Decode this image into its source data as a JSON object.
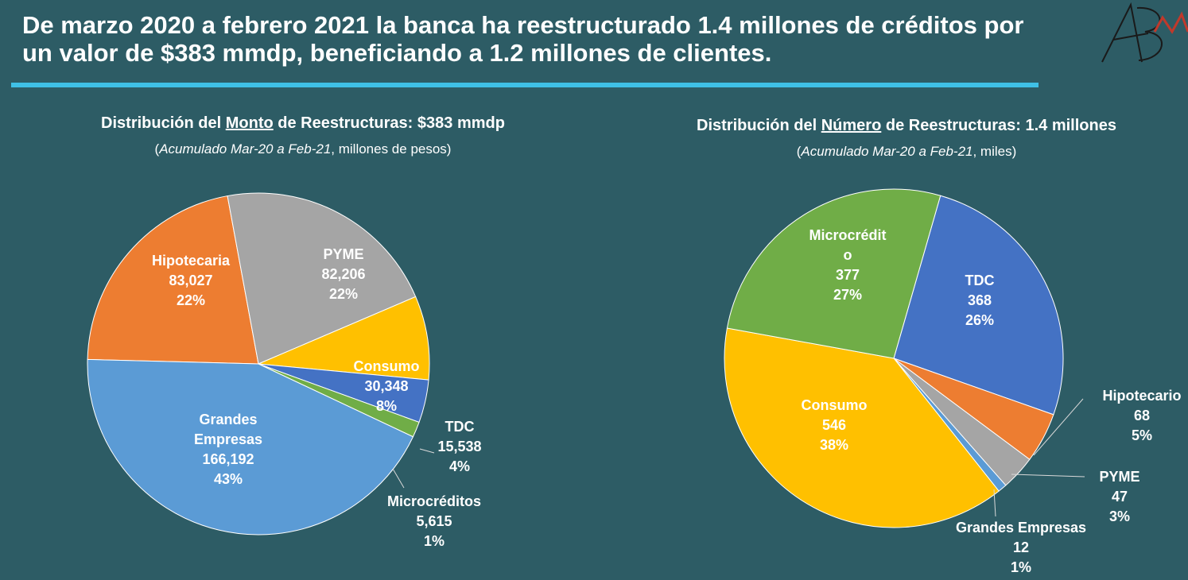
{
  "header": {
    "headline": "De marzo 2020 a febrero 2021 la banca ha reestructurado 1.4 millones de créditos por un valor de $383 mmdp, beneficiando a 1.2 millones de clientes.",
    "logo_text": "ABM"
  },
  "chart_data": [
    {
      "type": "pie",
      "title_pre": "Distribución del ",
      "title_em": "Monto",
      "title_post": " de Reestructuras: $383 mmdp",
      "subtitle_paren_open": "(",
      "subtitle_em": "Acumulado Mar-20 a Feb-21",
      "subtitle_rest": ", millones de pesos)",
      "slices": [
        {
          "label": "Hipotecaria",
          "value": 83027,
          "value_text": "83,027",
          "pct": "22%",
          "color": "#ed7d31"
        },
        {
          "label": "PYME",
          "value": 82206,
          "value_text": "82,206",
          "pct": "22%",
          "color": "#a5a5a5"
        },
        {
          "label": "Consumo",
          "value": 30348,
          "value_text": "30,348",
          "pct": "8%",
          "color": "#ffc000"
        },
        {
          "label": "TDC",
          "value": 15538,
          "value_text": "15,538",
          "pct": "4%",
          "color": "#4472c4"
        },
        {
          "label": "Microcréditos",
          "value": 5615,
          "value_text": "5,615",
          "pct": "1%",
          "color": "#70ad47"
        },
        {
          "label": "Grandes Empresas",
          "value": 166192,
          "value_text": "166,192",
          "pct": "43%",
          "color": "#5b9bd5"
        }
      ]
    },
    {
      "type": "pie",
      "title_pre": "Distribución del ",
      "title_em": "Número",
      "title_post": " de Reestructuras: 1.4 millones",
      "subtitle_paren_open": "(",
      "subtitle_em": "Acumulado Mar-20 a Feb-21",
      "subtitle_rest": ", miles)",
      "slices": [
        {
          "label": "TDC",
          "value": 368,
          "value_text": "368",
          "pct": "26%",
          "color": "#4472c4"
        },
        {
          "label": "Hipotecario",
          "value": 68,
          "value_text": "68",
          "pct": "5%",
          "color": "#ed7d31"
        },
        {
          "label": "PYME",
          "value": 47,
          "value_text": "47",
          "pct": "3%",
          "color": "#a5a5a5"
        },
        {
          "label": "Grandes Empresas",
          "value": 12,
          "value_text": "12",
          "pct": "1%",
          "color": "#5b9bd5"
        },
        {
          "label": "Consumo",
          "value": 546,
          "value_text": "546",
          "pct": "38%",
          "color": "#ffc000"
        },
        {
          "label": "Microcrédito",
          "value": 377,
          "value_text": "377",
          "pct": "27%",
          "color": "#70ad47"
        }
      ]
    }
  ]
}
